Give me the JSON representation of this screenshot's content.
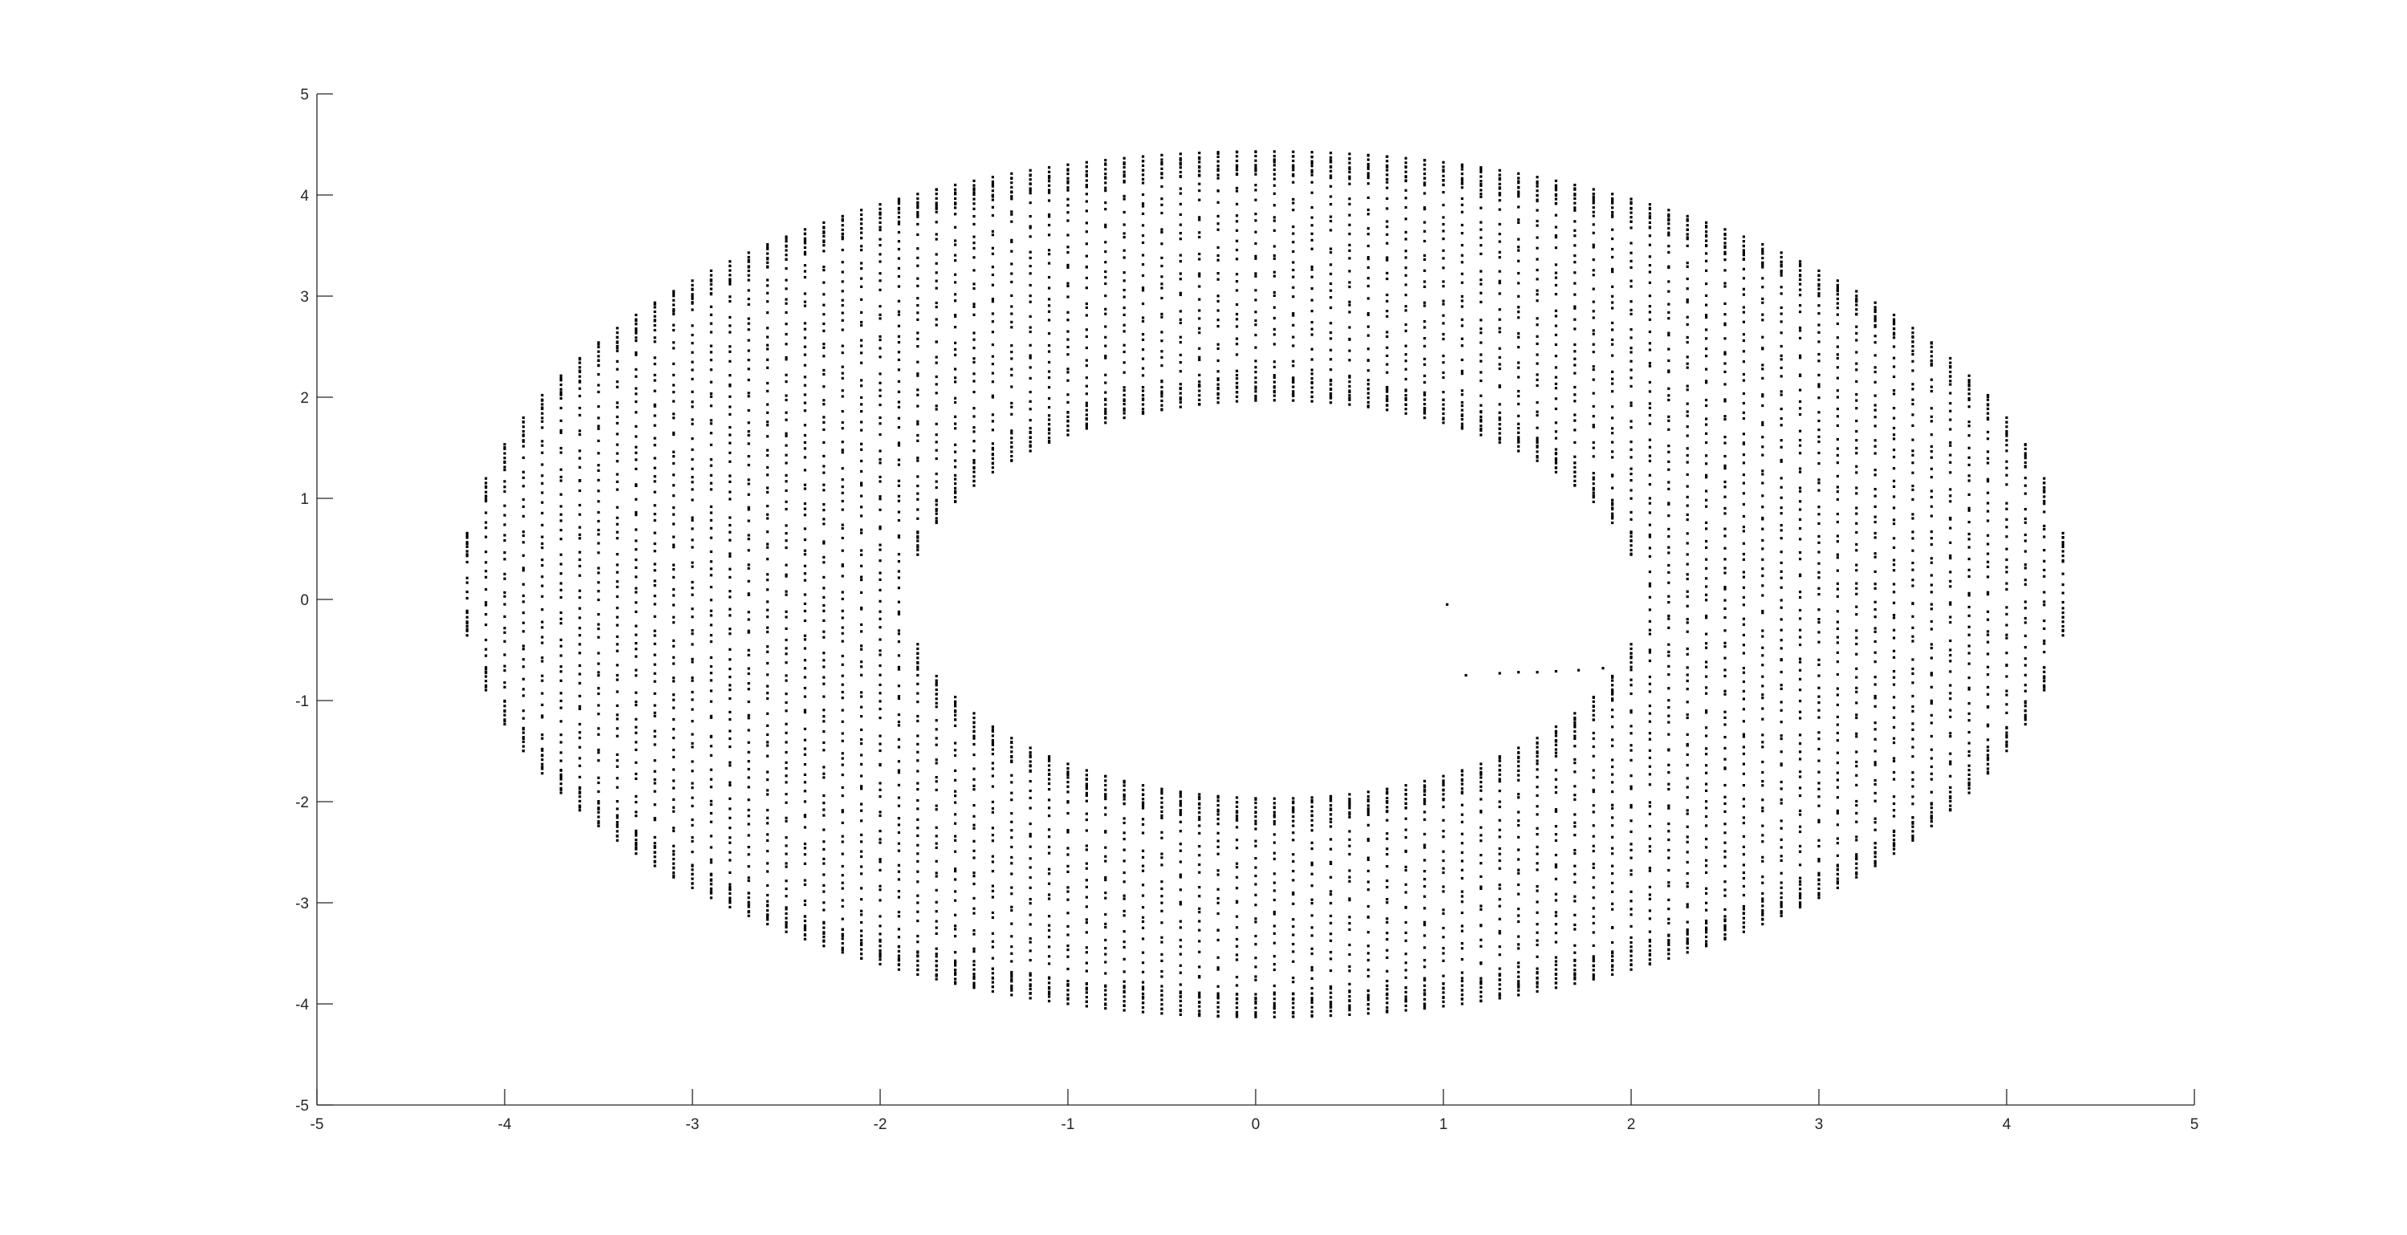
{
  "chart_data": {
    "type": "scatter",
    "title": "",
    "xlabel": "",
    "ylabel": "",
    "xlim": [
      -5,
      5
    ],
    "ylim": [
      -5,
      5
    ],
    "grid": false,
    "box": false,
    "marker_color": "#000000",
    "axis_color": "#262626",
    "xticks": [
      -5,
      -4,
      -3,
      -2,
      -1,
      0,
      1,
      2,
      3,
      4,
      5
    ],
    "yticks": [
      -5,
      -4,
      -3,
      -2,
      -1,
      0,
      1,
      2,
      3,
      4,
      5
    ],
    "xtick_labels": [
      "-5",
      "-4",
      "-3",
      "-2",
      "-1",
      "0",
      "1",
      "2",
      "3",
      "4",
      "5"
    ],
    "ytick_labels": [
      "-5",
      "-4",
      "-3",
      "-2",
      "-1",
      "0",
      "1",
      "2",
      "3",
      "4",
      "5"
    ],
    "series": [
      {
        "name": "point cloud (elliptical annulus sampled on vertical columns)",
        "region": {
          "outer": {
            "cx": 0.05,
            "cy": 0.15,
            "rx": 4.28,
            "ry": 4.28
          },
          "inner": {
            "cx": 0.1,
            "cy": 0.0,
            "rx": 1.95,
            "ry": 1.97
          }
        },
        "column_x_start": -4.2,
        "column_x_end": 4.3,
        "column_spacing": 0.1,
        "points_per_column": 46,
        "isolated_points": [
          {
            "x": 1.02,
            "y": -0.05
          },
          {
            "x": 1.12,
            "y": -0.75
          },
          {
            "x": 1.3,
            "y": -0.73
          },
          {
            "x": 1.4,
            "y": -0.72
          },
          {
            "x": 1.5,
            "y": -0.72
          },
          {
            "x": 1.6,
            "y": -0.71
          },
          {
            "x": 1.72,
            "y": -0.7
          },
          {
            "x": 1.85,
            "y": -0.68
          }
        ]
      }
    ]
  }
}
